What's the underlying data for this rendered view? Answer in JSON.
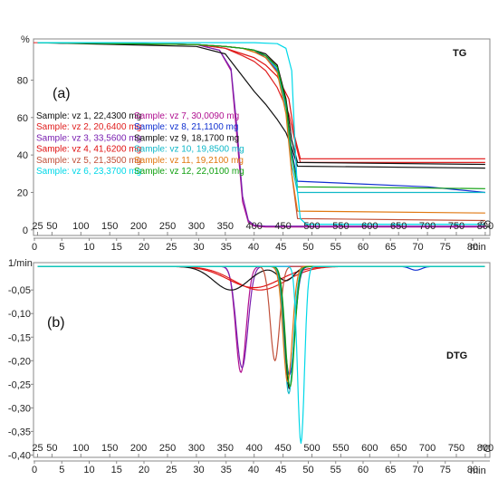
{
  "chart_data": [
    {
      "panel": "(a)",
      "title": "TG",
      "type": "line",
      "ylabel": "%",
      "xunit": "°C",
      "temp_ticks": [
        "25",
        "50",
        "100",
        "150",
        "200",
        "250",
        "300",
        "350",
        "400",
        "450",
        "500",
        "550",
        "600",
        "650",
        "700",
        "750",
        "800"
      ],
      "y_ticks": [
        "0",
        "20",
        "40",
        "60",
        "80"
      ],
      "ylim": [
        -3,
        102
      ],
      "xlim": [
        18,
        808
      ],
      "time_ticks": [
        "0",
        "5",
        "10",
        "15",
        "20",
        "25",
        "30",
        "35",
        "40",
        "45",
        "50",
        "55",
        "60",
        "65",
        "70",
        "75",
        "80"
      ],
      "time_unit": "min",
      "grid": false,
      "legend_left": [
        {
          "label": "Sample: vz 1, 22,4300 mg",
          "color": "#111111"
        },
        {
          "label": "Sample: vz 2, 20,6400 mg",
          "color": "#e02020"
        },
        {
          "label": "Sample: vz 3, 33,5600 mg",
          "color": "#7a1fb0"
        },
        {
          "label": "Sample: vz 4, 41,6200 mg",
          "color": "#e01010"
        },
        {
          "label": "Sample: vz 5, 21,3500 mg",
          "color": "#c0503a"
        },
        {
          "label": "Sample: vz 6, 23,3700 mg",
          "color": "#00d8e8"
        }
      ],
      "legend_right": [
        {
          "label": "Sample: vz 7, 30,0090 mg",
          "color": "#b01090"
        },
        {
          "label": "Sample: vz 8, 21,1100 mg",
          "color": "#1030d0"
        },
        {
          "label": "Sample: vz 9, 18,1700 mg",
          "color": "#111111"
        },
        {
          "label": "Sample: vz 10, 19,8500 mg",
          "color": "#10b8c8"
        },
        {
          "label": "Sample: vz 11, 19,2100 mg",
          "color": "#e07810"
        },
        {
          "label": "Sample: vz 12, 22,0100 mg",
          "color": "#10a010"
        }
      ],
      "series": [
        {
          "color": "#b01090",
          "x": [
            25,
            300,
            340,
            360,
            370,
            380,
            390,
            400,
            420,
            450,
            800
          ],
          "y": [
            100,
            99,
            96,
            85,
            50,
            15,
            4,
            2,
            1.5,
            1.5,
            1.5
          ]
        },
        {
          "color": "#7a1fb0",
          "x": [
            25,
            300,
            340,
            360,
            370,
            380,
            390,
            400,
            420,
            450,
            800
          ],
          "y": [
            100,
            99,
            96,
            86,
            55,
            18,
            5,
            2.5,
            2,
            2,
            2
          ]
        },
        {
          "color": "#e01010",
          "x": [
            25,
            300,
            350,
            380,
            400,
            420,
            440,
            460,
            470,
            480,
            800
          ],
          "y": [
            100,
            99,
            97,
            94,
            92,
            88,
            82,
            70,
            50,
            38,
            38
          ]
        },
        {
          "color": "#e02020",
          "x": [
            25,
            300,
            350,
            380,
            400,
            420,
            440,
            460,
            470,
            480,
            800
          ],
          "y": [
            100,
            99,
            97,
            93,
            90,
            85,
            76,
            62,
            48,
            36,
            36
          ]
        },
        {
          "color": "#c0503a",
          "x": [
            25,
            300,
            350,
            380,
            400,
            420,
            440,
            455,
            465,
            475,
            800
          ],
          "y": [
            100,
            99,
            98,
            97,
            95,
            93,
            88,
            70,
            30,
            6,
            5
          ]
        },
        {
          "color": "#111111",
          "x": [
            25,
            300,
            350,
            380,
            400,
            420,
            440,
            455,
            465,
            475,
            800
          ],
          "y": [
            100,
            98,
            94,
            82,
            74,
            67,
            59,
            52,
            44,
            34,
            33
          ]
        },
        {
          "color": "#1030d0",
          "x": [
            25,
            300,
            350,
            380,
            400,
            420,
            440,
            455,
            465,
            475,
            700,
            800
          ],
          "y": [
            100,
            99,
            98,
            97,
            96,
            92,
            85,
            66,
            42,
            26,
            23,
            20
          ]
        },
        {
          "color": "#111111",
          "x": [
            25,
            300,
            350,
            380,
            400,
            420,
            440,
            455,
            465,
            475,
            800
          ],
          "y": [
            100,
            99,
            98,
            97,
            96,
            94,
            88,
            70,
            48,
            36,
            35
          ]
        },
        {
          "color": "#10b8c8",
          "x": [
            25,
            300,
            350,
            380,
            400,
            420,
            440,
            455,
            465,
            475,
            800
          ],
          "y": [
            100,
            99,
            98,
            97,
            96,
            93,
            86,
            65,
            35,
            20,
            20
          ]
        },
        {
          "color": "#e07810",
          "x": [
            25,
            300,
            350,
            380,
            400,
            420,
            440,
            455,
            465,
            475,
            800
          ],
          "y": [
            100,
            99,
            98,
            97,
            95,
            92,
            84,
            62,
            30,
            10,
            9
          ]
        },
        {
          "color": "#10a010",
          "x": [
            25,
            300,
            350,
            380,
            400,
            420,
            440,
            455,
            465,
            475,
            800
          ],
          "y": [
            100,
            99,
            98,
            97,
            96,
            93,
            87,
            68,
            40,
            23,
            22
          ]
        },
        {
          "color": "#00d8e8",
          "x": [
            25,
            300,
            400,
            440,
            455,
            465,
            470,
            475,
            480,
            490,
            800
          ],
          "y": [
            100,
            100,
            100,
            99.5,
            97,
            85,
            50,
            20,
            6,
            3,
            3
          ]
        }
      ]
    },
    {
      "panel": "(b)",
      "title": "DTG",
      "type": "line",
      "ylabel": "1/min",
      "xunit": "°C",
      "temp_ticks": [
        "25",
        "50",
        "100",
        "150",
        "200",
        "250",
        "300",
        "350",
        "400",
        "450",
        "500",
        "550",
        "600",
        "650",
        "700",
        "750",
        "800"
      ],
      "y_ticks": [
        "-0,05",
        "-0,10",
        "-0,15",
        "-0,20",
        "-0,25",
        "-0,30",
        "-0,35",
        "-0,40"
      ],
      "ylim": [
        -0.405,
        0.008
      ],
      "xlim": [
        18,
        808
      ],
      "time_ticks": [
        "0",
        "5",
        "10",
        "15",
        "20",
        "25",
        "30",
        "35",
        "40",
        "45",
        "50",
        "55",
        "60",
        "65",
        "70",
        "75",
        "80"
      ],
      "time_unit": "min",
      "grid": false,
      "series": [
        {
          "color": "#b01090",
          "peaks": [
            {
              "mu": 377,
              "sig": 9,
              "a": -0.225
            }
          ]
        },
        {
          "color": "#7a1fb0",
          "peaks": [
            {
              "mu": 379,
              "sig": 10,
              "a": -0.215
            }
          ]
        },
        {
          "color": "#e01010",
          "peaks": [
            {
              "mu": 400,
              "sig": 45,
              "a": -0.045
            }
          ]
        },
        {
          "color": "#e02020",
          "peaks": [
            {
              "mu": 410,
              "sig": 45,
              "a": -0.05
            }
          ]
        },
        {
          "color": "#111111",
          "peaks": [
            {
              "mu": 360,
              "sig": 30,
              "a": -0.05
            },
            {
              "mu": 455,
              "sig": 14,
              "a": -0.03
            }
          ]
        },
        {
          "color": "#c0503a",
          "peaks": [
            {
              "mu": 436,
              "sig": 8,
              "a": -0.2
            }
          ]
        },
        {
          "color": "#1030d0",
          "peaks": [
            {
              "mu": 461,
              "sig": 9,
              "a": -0.23
            },
            {
              "mu": 680,
              "sig": 10,
              "a": -0.008
            }
          ]
        },
        {
          "color": "#111111",
          "peaks": [
            {
              "mu": 461,
              "sig": 8,
              "a": -0.26
            }
          ]
        },
        {
          "color": "#10b8c8",
          "peaks": [
            {
              "mu": 460,
              "sig": 8,
              "a": -0.27
            }
          ]
        },
        {
          "color": "#e07810",
          "peaks": [
            {
              "mu": 458,
              "sig": 8,
              "a": -0.245
            }
          ]
        },
        {
          "color": "#10a010",
          "peaks": [
            {
              "mu": 462,
              "sig": 8,
              "a": -0.255
            }
          ]
        },
        {
          "color": "#00d8e8",
          "peaks": [
            {
              "mu": 481,
              "sig": 6,
              "a": -0.375
            }
          ]
        }
      ]
    }
  ]
}
